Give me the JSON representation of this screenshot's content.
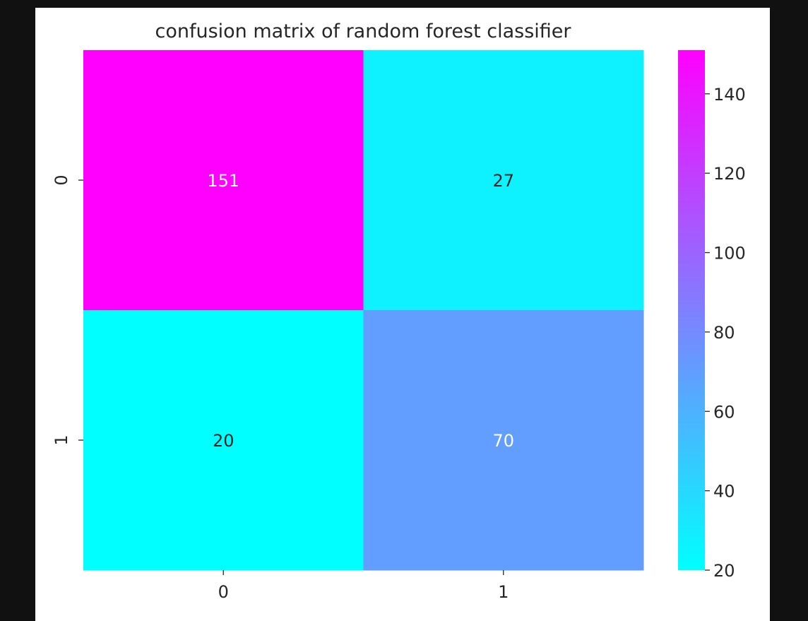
{
  "chart_data": {
    "type": "heatmap",
    "title": "confusion matrix of random forest classifier",
    "xlabel": "",
    "ylabel": "",
    "x_categories": [
      "0",
      "1"
    ],
    "y_categories": [
      "0",
      "1"
    ],
    "values": [
      [
        151,
        27
      ],
      [
        20,
        70
      ]
    ],
    "colormap": "cool",
    "colormap_range": [
      20,
      151
    ],
    "colorbar_ticks": [
      "20",
      "40",
      "60",
      "80",
      "100",
      "120",
      "140"
    ],
    "annotation_colors": {
      "light": "#ffffff",
      "dark": "#262626"
    },
    "grid": false
  }
}
